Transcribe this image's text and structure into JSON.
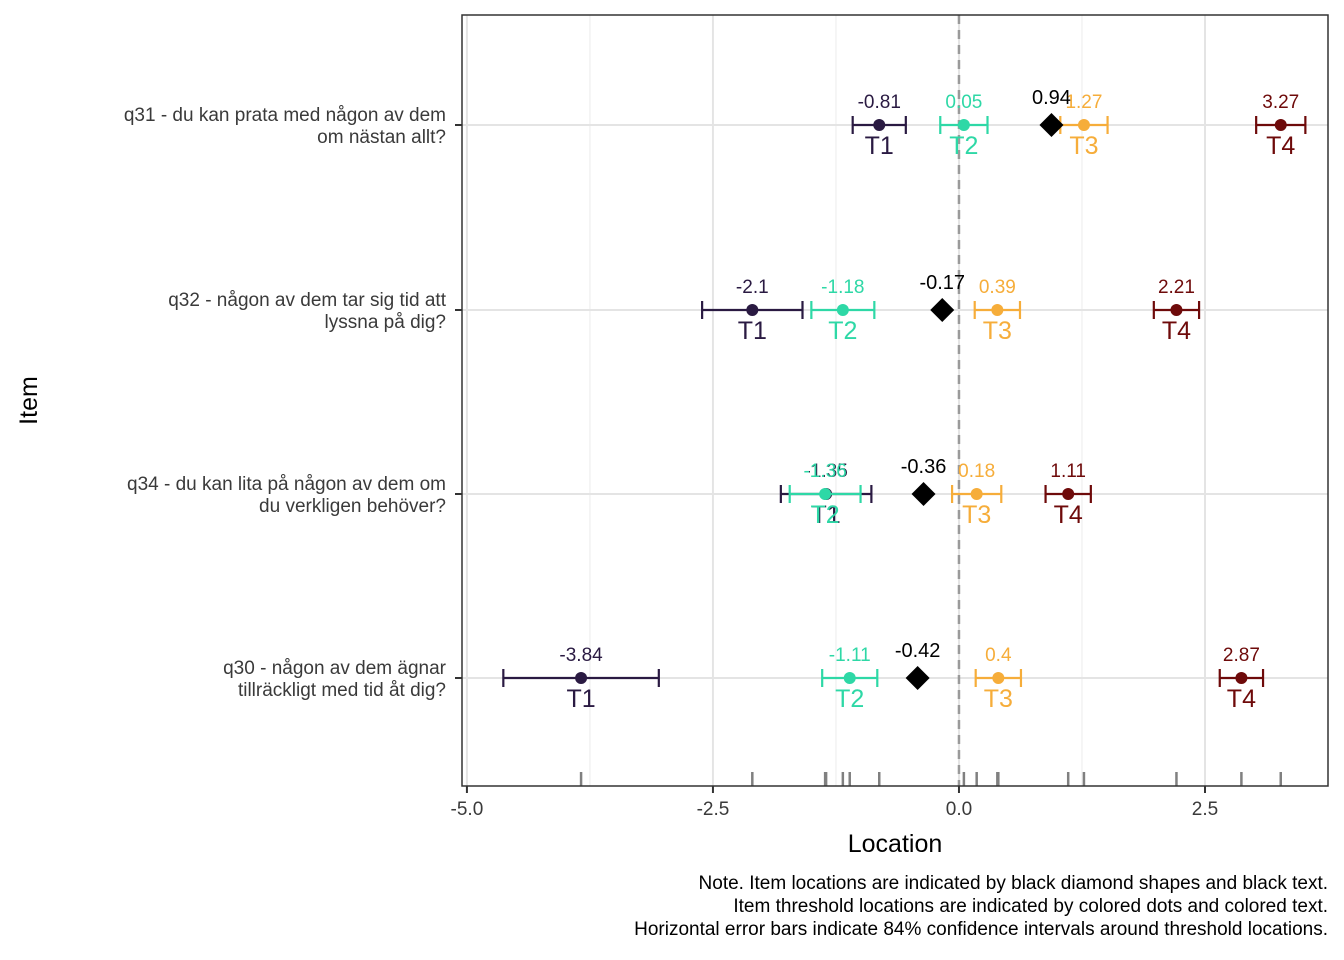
{
  "chart_data": {
    "type": "scatter",
    "xlabel": "Location",
    "ylabel": "Item",
    "xlim": [
      -5.05,
      3.75
    ],
    "x_ticks": [
      -5.0,
      -2.5,
      0.0,
      2.5
    ],
    "x_tick_labels": [
      "-5.0",
      "-2.5",
      "0.0",
      "2.5"
    ],
    "reference_line": 0,
    "grid": true,
    "threshold_colors": {
      "T1": "#2a1a42",
      "T2": "#2ed8a6",
      "T3": "#f6ad3a",
      "T4": "#6e0a0a"
    },
    "item_marker_color": "#000000",
    "items": [
      {
        "label_lines": [
          "q31 - du kan prata med någon av dem",
          "om nästan allt?"
        ],
        "location": 0.94,
        "location_label": "0.94",
        "thresholds": [
          {
            "name": "T1",
            "value": -0.81,
            "label": "-0.81",
            "ci": [
              -1.08,
              -0.54
            ]
          },
          {
            "name": "T2",
            "value": 0.05,
            "label": "0.05",
            "ci": [
              -0.19,
              0.29
            ]
          },
          {
            "name": "T3",
            "value": 1.27,
            "label": "1.27",
            "ci": [
              1.03,
              1.51
            ]
          },
          {
            "name": "T4",
            "value": 3.27,
            "label": "3.27",
            "ci": [
              3.02,
              3.52
            ]
          }
        ]
      },
      {
        "label_lines": [
          "q32 - någon av dem tar sig tid att",
          "lyssna på dig?"
        ],
        "location": -0.17,
        "location_label": "-0.17",
        "thresholds": [
          {
            "name": "T1",
            "value": -2.1,
            "label": "-2.1",
            "ci": [
              -2.61,
              -1.59
            ]
          },
          {
            "name": "T2",
            "value": -1.18,
            "label": "-1.18",
            "ci": [
              -1.5,
              -0.86
            ]
          },
          {
            "name": "T3",
            "value": 0.39,
            "label": "0.39",
            "ci": [
              0.16,
              0.62
            ]
          },
          {
            "name": "T4",
            "value": 2.21,
            "label": "2.21",
            "ci": [
              1.98,
              2.44
            ]
          }
        ]
      },
      {
        "label_lines": [
          "q34 - du kan lita på någon av dem om",
          "du verkligen behöver?"
        ],
        "location": -0.36,
        "location_label": "-0.36",
        "thresholds": [
          {
            "name": "T1",
            "value": -1.35,
            "label": "-1.35",
            "ci": [
              -1.81,
              -0.89
            ]
          },
          {
            "name": "T2",
            "value": -1.36,
            "label": "-1.36",
            "ci": [
              -1.72,
              -1.0
            ]
          },
          {
            "name": "T3",
            "value": 0.18,
            "label": "0.18",
            "ci": [
              -0.07,
              0.43
            ]
          },
          {
            "name": "T4",
            "value": 1.11,
            "label": "1.11",
            "ci": [
              0.88,
              1.34
            ]
          }
        ]
      },
      {
        "label_lines": [
          "q30 - någon av dem ägnar",
          "tillräckligt med tid åt dig?"
        ],
        "location": -0.42,
        "location_label": "-0.42",
        "thresholds": [
          {
            "name": "T1",
            "value": -3.84,
            "label": "-3.84",
            "ci": [
              -4.63,
              -3.05
            ]
          },
          {
            "name": "T2",
            "value": -1.11,
            "label": "-1.11",
            "ci": [
              -1.39,
              -0.83
            ]
          },
          {
            "name": "T3",
            "value": 0.4,
            "label": "0.4",
            "ci": [
              0.17,
              0.63
            ]
          },
          {
            "name": "T4",
            "value": 2.87,
            "label": "2.87",
            "ci": [
              2.65,
              3.09
            ]
          }
        ]
      }
    ],
    "rug": [
      -3.84,
      -2.1,
      -1.36,
      -1.35,
      -1.18,
      -1.11,
      -0.81,
      0.05,
      0.18,
      0.39,
      0.4,
      1.11,
      1.27,
      2.21,
      2.87,
      3.27
    ]
  },
  "note": {
    "line1": "Note. Item locations are indicated by black diamond shapes and black text.",
    "line2": "Item threshold locations are indicated by colored dots and colored text.",
    "line3": "Horizontal error bars indicate 84% confidence intervals around threshold locations."
  }
}
